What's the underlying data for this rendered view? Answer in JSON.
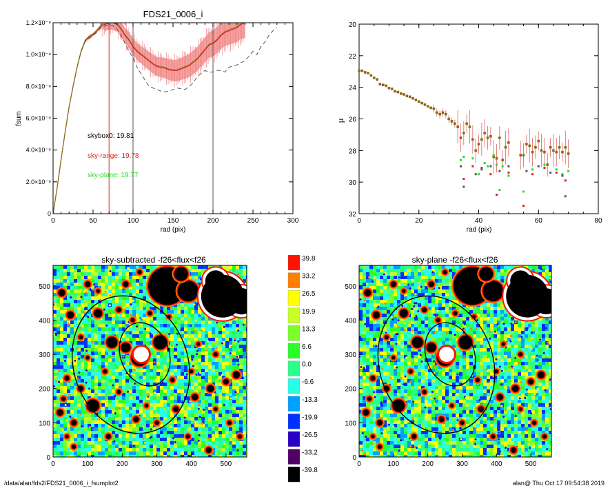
{
  "footer": {
    "path": "/data/alan/fds2/FDS21_0006_i_fsumplot2",
    "stamp": "alan@  Thu Oct 17 09:54:38 2019"
  },
  "chart_data": [
    {
      "type": "line",
      "title": "FDS21_0006_i",
      "xlabel": "rad (pix)",
      "ylabel": "fsum",
      "xlim": [
        0,
        300
      ],
      "ylim": [
        0,
        1.2e-08
      ],
      "xticks": [
        "0",
        "50",
        "100",
        "150",
        "200",
        "250",
        "300"
      ],
      "yticks": [
        "0",
        "2.0×10⁻⁹",
        "4.0×10⁻⁹",
        "6.0×10⁻⁹",
        "8.0×10⁻⁹",
        "1.0×10⁻⁸",
        "1.2×10⁻⁸"
      ],
      "vlines": [
        {
          "x": 70,
          "color": "#e0201e"
        },
        {
          "x": 100,
          "color": "#555555"
        },
        {
          "x": 200,
          "color": "#555555"
        }
      ],
      "annotations": [
        {
          "text": "skybox0: 19.81",
          "color": "#000000"
        },
        {
          "text": "sky-range: 19.78",
          "color": "#e0201e"
        },
        {
          "text": "sky-plane: 19.77",
          "color": "#22dd22"
        }
      ],
      "series": [
        {
          "color": "#cc2020",
          "x": [
            0,
            5,
            10,
            15,
            20,
            25,
            30,
            35,
            40,
            45,
            50,
            55,
            60,
            65,
            70,
            75,
            80,
            85,
            90,
            95,
            100,
            105,
            110,
            115,
            120,
            125,
            130,
            135,
            140,
            145,
            150,
            155,
            160,
            165,
            170,
            175,
            180,
            185,
            190,
            195,
            200,
            205,
            210,
            215,
            220,
            225,
            230,
            235,
            240
          ],
          "y": [
            0,
            1.6e-09,
            3.4e-09,
            5.1e-09,
            6.7e-09,
            8e-09,
            9.2e-09,
            1.02e-08,
            1.085e-08,
            1.11e-08,
            1.125e-08,
            1.15e-08,
            1.18e-08,
            1.19e-08,
            1.2e-08,
            1.2e-08,
            1.19e-08,
            1.16e-08,
            1.12e-08,
            1.09e-08,
            1.05e-08,
            1.02e-08,
            1e-08,
            9.8e-09,
            9.6e-09,
            9.4e-09,
            9.25e-09,
            9.2e-09,
            9.15e-09,
            9.05e-09,
            9e-09,
            9e-09,
            9.1e-09,
            9.2e-09,
            9.3e-09,
            9.5e-09,
            9.7e-09,
            1e-08,
            1.03e-08,
            1.06e-08,
            1.07e-08,
            1.09e-08,
            1.12e-08,
            1.14e-08,
            1.15e-08,
            1.16e-08,
            1.17e-08,
            1.19e-08,
            1.2e-08
          ]
        },
        {
          "color": "#555555",
          "dash": "dashed",
          "x": [
            0,
            5,
            10,
            15,
            20,
            25,
            30,
            35,
            40,
            45,
            50,
            55,
            60,
            65,
            70,
            75,
            80,
            85,
            90,
            95,
            100,
            105,
            110,
            115,
            120,
            125,
            130,
            135,
            140,
            145,
            150,
            155,
            160,
            165,
            170,
            175,
            180,
            185,
            190,
            195,
            200,
            205,
            210,
            215,
            220,
            225,
            230,
            235,
            240,
            245,
            250,
            255,
            260,
            265,
            270,
            275,
            280
          ],
          "y": [
            0,
            1.6e-09,
            3.4e-09,
            5.1e-09,
            6.7e-09,
            8e-09,
            9.2e-09,
            1.02e-08,
            1.08e-08,
            1.1e-08,
            1.12e-08,
            1.14e-08,
            1.17e-08,
            1.18e-08,
            1.19e-08,
            1.18e-08,
            1.16e-08,
            1.12e-08,
            1.07e-08,
            1.02e-08,
            9.8e-09,
            9.2e-09,
            8.8e-09,
            8.4e-09,
            8e-09,
            7.9e-09,
            7.8e-09,
            7.7e-09,
            7.65e-09,
            7.7e-09,
            7.8e-09,
            7.9e-09,
            7.85e-09,
            7.8e-09,
            8e-09,
            8.2e-09,
            8.6e-09,
            8.8e-09,
            9e-09,
            8.9e-09,
            8.9e-09,
            9e-09,
            9e-09,
            8.9e-09,
            9.2e-09,
            9.3e-09,
            9.35e-09,
            9.5e-09,
            9.6e-09,
            9.9e-09,
            1.02e-08,
            1e-08,
            1.05e-08,
            1.08e-08,
            1.12e-08,
            1.15e-08,
            1.17e-08
          ]
        }
      ]
    },
    {
      "type": "scatter",
      "title": "",
      "xlabel": "rad (pix)",
      "ylabel": "μ",
      "xlim": [
        0,
        80
      ],
      "ylim": [
        32,
        20
      ],
      "xticks": [
        "0",
        "20",
        "40",
        "60",
        "80"
      ],
      "yticks": [
        "20",
        "22",
        "24",
        "26",
        "28",
        "30",
        "32"
      ],
      "series": [
        {
          "color": "#8b6914",
          "x": [
            0,
            1,
            2,
            3,
            4,
            5,
            6,
            7,
            8,
            9,
            10,
            11,
            12,
            13,
            14,
            15,
            16,
            17,
            18,
            19,
            20,
            21,
            22,
            23,
            24,
            25,
            26,
            27,
            28,
            29,
            30,
            31,
            32,
            33,
            34,
            35,
            36,
            37,
            38,
            39,
            40,
            41,
            42,
            43,
            44,
            45,
            46,
            47,
            48,
            49,
            50,
            54,
            55,
            56,
            57,
            58,
            59,
            60,
            61,
            62,
            63,
            64,
            65,
            66,
            67,
            68,
            69,
            70
          ],
          "y": [
            22.95,
            22.95,
            23.05,
            23.1,
            23.25,
            23.4,
            23.5,
            23.8,
            23.85,
            23.9,
            24.05,
            24.1,
            24.25,
            24.3,
            24.4,
            24.45,
            24.55,
            24.6,
            24.7,
            24.8,
            24.9,
            25.0,
            25.1,
            25.2,
            25.3,
            25.35,
            25.6,
            25.7,
            25.6,
            25.7,
            26.0,
            26.15,
            26.3,
            26.5,
            27.2,
            26.9,
            26.3,
            26.5,
            27.3,
            28.0,
            27.6,
            27.3,
            26.9,
            27.2,
            27.1,
            28.4,
            28.5,
            27.2,
            28.6,
            27.8,
            27.5,
            28.3,
            28.3,
            27.6,
            27.7,
            28.1,
            27.8,
            27.4,
            28.0,
            28.1,
            28.9,
            27.8,
            28.0,
            28.1,
            27.8,
            28.1,
            27.8,
            28.2
          ]
        },
        {
          "color": "#22dd22",
          "x": [
            34,
            35,
            38,
            40,
            42,
            43,
            45,
            46,
            47,
            48,
            50,
            55,
            58,
            62,
            66,
            68,
            70
          ],
          "y": [
            28.6,
            28.4,
            28.5,
            29.5,
            28.8,
            29.0,
            28.3,
            28.9,
            30.5,
            29.0,
            29.6,
            30.6,
            29.2,
            28.9,
            29.2,
            29.5,
            29.3
          ]
        },
        {
          "color": "#e0201e",
          "x": [
            35,
            38,
            41,
            44,
            46,
            50,
            55,
            58,
            62,
            66,
            69
          ],
          "y": [
            29.8,
            29.0,
            29.1,
            29.5,
            30.8,
            29.4,
            31.5,
            29.5,
            29.1,
            29.4,
            29.9
          ]
        },
        {
          "color": "#555555",
          "x": [
            34,
            35,
            39,
            41,
            44,
            47,
            50,
            56,
            60,
            64,
            68,
            69
          ],
          "y": [
            29.0,
            30.3,
            29.5,
            29.2,
            29.0,
            29.3,
            29.0,
            29.3,
            29.0,
            29.4,
            29.6,
            30.9
          ]
        }
      ]
    },
    {
      "type": "heatmap",
      "title": "sky-subtracted -f26<flux<f26",
      "xlim": [
        0,
        560
      ],
      "ylim": [
        0,
        560
      ],
      "xticks": [
        "0",
        "100",
        "200",
        "300",
        "400",
        "500"
      ],
      "yticks": [
        "0",
        "100",
        "200",
        "300",
        "400",
        "500"
      ]
    },
    {
      "type": "heatmap",
      "title": "sky-plane -f26<flux<f26",
      "xlim": [
        0,
        560
      ],
      "ylim": [
        0,
        560
      ],
      "xticks": [
        "0",
        "100",
        "200",
        "300",
        "400",
        "500"
      ],
      "yticks": [
        "0",
        "100",
        "200",
        "300",
        "400",
        "500"
      ]
    }
  ],
  "colorbar": {
    "labels": [
      "39.8",
      "33.2",
      "26.5",
      "19.9",
      "13.3",
      "6.6",
      "0.0",
      "-6.6",
      "-13.3",
      "-19.9",
      "-26.5",
      "-33.2",
      "-39.8"
    ],
    "colors": [
      "#ff1400",
      "#ff7f00",
      "#ffff00",
      "#c8ff28",
      "#7cff28",
      "#28ff28",
      "#28ff8c",
      "#28ffe6",
      "#00a0ff",
      "#0032ff",
      "#2800c8",
      "#500064",
      "#000000"
    ]
  },
  "maps": {
    "ellipses": [
      {
        "cx": 225,
        "cy": 270,
        "rx": 165,
        "ry": 205,
        "angle": -20
      },
      {
        "cx": 265,
        "cy": 300,
        "rx": 70,
        "ry": 95,
        "angle": -20
      }
    ],
    "blobs": [
      {
        "x": 330,
        "y": 500,
        "r": 55
      },
      {
        "x": 390,
        "y": 485,
        "r": 30
      },
      {
        "x": 370,
        "y": 535,
        "r": 20
      },
      {
        "x": 250,
        "y": 290,
        "r": 24
      },
      {
        "x": 310,
        "y": 335,
        "r": 20
      },
      {
        "x": 170,
        "y": 335,
        "r": 16
      },
      {
        "x": 115,
        "y": 150,
        "r": 18
      },
      {
        "x": 210,
        "y": 320,
        "r": 14
      },
      {
        "x": 130,
        "y": 420,
        "r": 12
      },
      {
        "x": 50,
        "y": 415,
        "r": 10
      },
      {
        "x": 25,
        "y": 480,
        "r": 10
      },
      {
        "x": 100,
        "y": 505,
        "r": 8
      },
      {
        "x": 210,
        "y": 505,
        "r": 8
      },
      {
        "x": 250,
        "y": 540,
        "r": 6
      },
      {
        "x": 190,
        "y": 430,
        "r": 7
      },
      {
        "x": 80,
        "y": 350,
        "r": 6
      },
      {
        "x": 150,
        "y": 250,
        "r": 6
      },
      {
        "x": 80,
        "y": 200,
        "r": 8
      },
      {
        "x": 40,
        "y": 230,
        "r": 7
      },
      {
        "x": 20,
        "y": 130,
        "r": 9
      },
      {
        "x": 30,
        "y": 170,
        "r": 6
      },
      {
        "x": 60,
        "y": 100,
        "r": 8
      },
      {
        "x": 160,
        "y": 60,
        "r": 7
      },
      {
        "x": 240,
        "y": 110,
        "r": 8
      },
      {
        "x": 300,
        "y": 100,
        "r": 6
      },
      {
        "x": 355,
        "y": 140,
        "r": 8
      },
      {
        "x": 410,
        "y": 175,
        "r": 9
      },
      {
        "x": 455,
        "y": 200,
        "r": 10
      },
      {
        "x": 500,
        "y": 220,
        "r": 8
      },
      {
        "x": 530,
        "y": 240,
        "r": 10
      },
      {
        "x": 470,
        "y": 300,
        "r": 6
      },
      {
        "x": 420,
        "y": 330,
        "r": 5
      },
      {
        "x": 450,
        "y": 20,
        "r": 8
      },
      {
        "x": 510,
        "y": 100,
        "r": 6
      },
      {
        "x": 390,
        "y": 60,
        "r": 6
      },
      {
        "x": 345,
        "y": 225,
        "r": 6
      },
      {
        "x": 190,
        "y": 190,
        "r": 6
      },
      {
        "x": 280,
        "y": 420,
        "r": 6
      },
      {
        "x": 335,
        "y": 410,
        "r": 5
      },
      {
        "x": 130,
        "y": 485,
        "r": 5
      },
      {
        "x": 540,
        "y": 60,
        "r": 6
      },
      {
        "x": 470,
        "y": 140,
        "r": 5
      },
      {
        "x": 230,
        "y": 400,
        "r": 6
      },
      {
        "x": 100,
        "y": 290,
        "r": 5
      },
      {
        "x": 270,
        "y": 150,
        "r": 5
      },
      {
        "x": 60,
        "y": 30,
        "r": 6
      },
      {
        "x": 40,
        "y": 60,
        "r": 5
      },
      {
        "x": 400,
        "y": 250,
        "r": 5
      }
    ],
    "hole": {
      "x": 255,
      "y": 300,
      "r": 22
    },
    "big_blob": [
      {
        "x": 490,
        "y": 470,
        "r": 62
      },
      {
        "x": 545,
        "y": 455,
        "r": 38
      },
      {
        "x": 470,
        "y": 515,
        "r": 30
      }
    ]
  }
}
